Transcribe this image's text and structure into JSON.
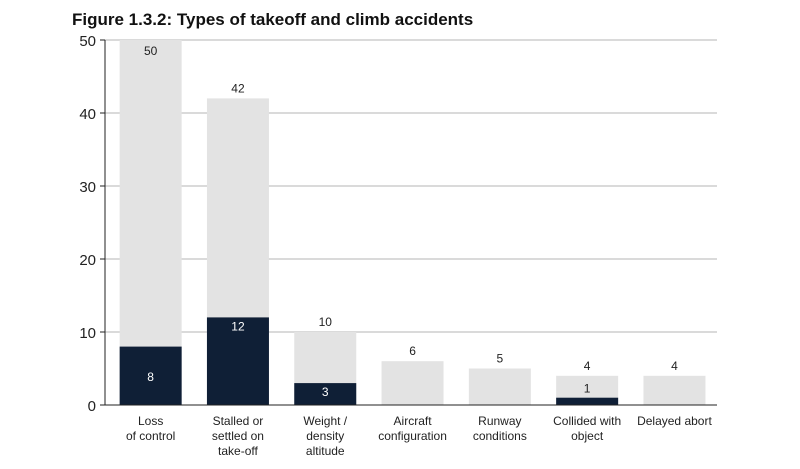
{
  "chart_data": {
    "type": "bar",
    "title": "Figure 1.3.2: Types of takeoff and climb accidents",
    "xlabel": "",
    "ylabel": "",
    "ylim": [
      0,
      50
    ],
    "yticks": [
      0,
      10,
      20,
      30,
      40,
      50
    ],
    "grid": true,
    "legend": "none",
    "categories": [
      [
        "Loss",
        "of control"
      ],
      [
        "Stalled or",
        "settled on",
        "take-off"
      ],
      [
        "Weight /",
        "density",
        "altitude"
      ],
      [
        "Aircraft",
        "configuration"
      ],
      [
        "Runway",
        "conditions"
      ],
      [
        "Collided with",
        "object"
      ],
      [
        "Delayed abort"
      ]
    ],
    "series": [
      {
        "values": [
          50,
          42,
          10,
          6,
          5,
          4,
          4
        ],
        "color": "#e3e3e3"
      },
      {
        "values": [
          8,
          12,
          3,
          null,
          null,
          1,
          null
        ],
        "color": "#0f1f36"
      }
    ]
  }
}
